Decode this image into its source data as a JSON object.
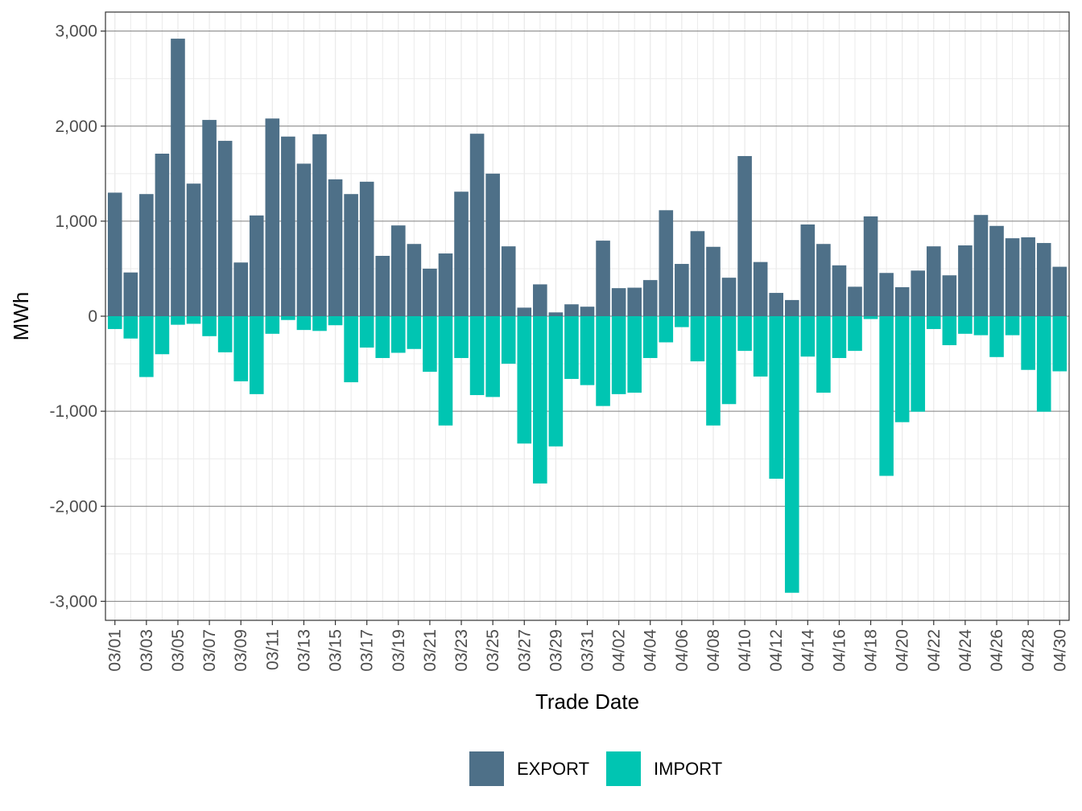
{
  "chart_data": {
    "type": "bar",
    "xlabel": "Trade Date",
    "ylabel": "MWh",
    "ylim": [
      -3200,
      3200
    ],
    "y_ticks": [
      3000,
      2000,
      1000,
      0,
      -1000,
      -2000,
      -3000
    ],
    "y_tick_labels": [
      "3,000",
      "2,000",
      "1,000",
      "0",
      "-1,000",
      "-2,000",
      "-3,000"
    ],
    "x_tick_labels": [
      "03/01",
      "03/03",
      "03/05",
      "03/07",
      "03/09",
      "03/11",
      "03/13",
      "03/15",
      "03/17",
      "03/19",
      "03/21",
      "03/23",
      "03/25",
      "03/27",
      "03/29",
      "03/31",
      "04/02",
      "04/04",
      "04/06",
      "04/08",
      "04/10",
      "04/12",
      "04/14",
      "04/16",
      "04/18",
      "04/20",
      "04/22",
      "04/24",
      "04/26",
      "04/28",
      "04/30"
    ],
    "x_range": [
      "03/01",
      "04/30"
    ],
    "grid": true,
    "legend_position": "bottom",
    "categories": [
      "03/01",
      "03/02",
      "03/03",
      "03/04",
      "03/05",
      "03/06",
      "03/07",
      "03/08",
      "03/09",
      "03/10",
      "03/11",
      "03/12",
      "03/13",
      "03/14",
      "03/15",
      "03/16",
      "03/17",
      "03/18",
      "03/19",
      "03/20",
      "03/21",
      "03/22",
      "03/23",
      "03/24",
      "03/25",
      "03/26",
      "03/27",
      "03/28",
      "03/29",
      "03/30",
      "03/31",
      "04/01",
      "04/02",
      "04/03",
      "04/04",
      "04/05",
      "04/06",
      "04/07",
      "04/08",
      "04/09",
      "04/10",
      "04/11",
      "04/12",
      "04/13",
      "04/14",
      "04/15",
      "04/16",
      "04/17",
      "04/18",
      "04/19",
      "04/20",
      "04/21",
      "04/22",
      "04/23",
      "04/24",
      "04/25",
      "04/26",
      "04/27",
      "04/28",
      "04/29",
      "04/30"
    ],
    "series": [
      {
        "name": "EXPORT",
        "color": "#4e7088",
        "values": [
          1300,
          460,
          1285,
          1710,
          2920,
          1395,
          2065,
          1845,
          565,
          1060,
          2080,
          1890,
          1605,
          1915,
          1440,
          1285,
          1415,
          635,
          955,
          760,
          500,
          660,
          1310,
          1920,
          1500,
          735,
          90,
          335,
          40,
          125,
          100,
          795,
          295,
          300,
          380,
          1115,
          550,
          895,
          730,
          405,
          1685,
          570,
          245,
          170,
          965,
          760,
          535,
          310,
          1050,
          455,
          305,
          480,
          735,
          430,
          745,
          1065,
          950,
          820,
          830,
          770,
          520
        ]
      },
      {
        "name": "IMPORT",
        "color": "#00c5b2",
        "values": [
          -135,
          -235,
          -640,
          -400,
          -90,
          -80,
          -210,
          -380,
          -685,
          -820,
          -185,
          -40,
          -145,
          -155,
          -95,
          -695,
          -330,
          -440,
          -385,
          -345,
          -585,
          -1150,
          -440,
          -830,
          -850,
          -500,
          -1340,
          -1760,
          -1370,
          -660,
          -725,
          -945,
          -820,
          -805,
          -440,
          -275,
          -115,
          -475,
          -1150,
          -925,
          -365,
          -635,
          -1710,
          -2910,
          -425,
          -805,
          -440,
          -365,
          -30,
          -1680,
          -1115,
          -1005,
          -135,
          -305,
          -185,
          -200,
          -430,
          -200,
          -565,
          -1005,
          -580
        ]
      }
    ]
  }
}
